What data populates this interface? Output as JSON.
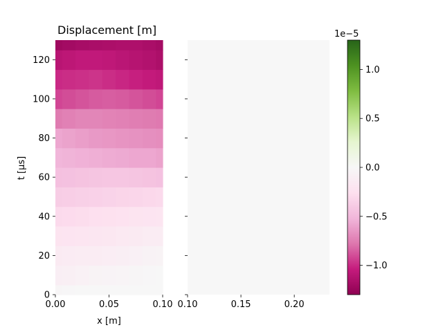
{
  "chart_data": [
    {
      "type": "heatmap",
      "title": "Displacement [m]",
      "xlabel": "x [m]",
      "ylabel": "t [µs]",
      "xlim": [
        0.0,
        0.1
      ],
      "ylim": [
        0,
        130
      ],
      "xticks": [
        0.0,
        0.05,
        0.1
      ],
      "xtick_labels": [
        "0.00",
        "0.05",
        "0.10"
      ],
      "yticks": [
        0,
        20,
        40,
        60,
        80,
        100,
        120
      ],
      "ytick_labels": [
        "0",
        "20",
        "40",
        "60",
        "80",
        "100",
        "120"
      ],
      "x": [
        0.0,
        0.0125,
        0.025,
        0.0375,
        0.05,
        0.0625,
        0.075,
        0.0875,
        0.1
      ],
      "t": [
        0,
        10,
        20,
        30,
        40,
        50,
        60,
        70,
        80,
        90,
        100,
        110,
        120,
        130
      ],
      "values": [
        [
          -0.02,
          -0.01,
          0.0,
          0.0,
          0.0,
          0.0,
          0.0,
          0.0,
          0.0
        ],
        [
          -0.1,
          -0.09,
          -0.07,
          -0.05,
          -0.04,
          -0.03,
          -0.02,
          -0.01,
          0.0
        ],
        [
          -0.15,
          -0.14,
          -0.13,
          -0.12,
          -0.11,
          -0.1,
          -0.08,
          -0.06,
          -0.05
        ],
        [
          -0.22,
          -0.21,
          -0.2,
          -0.19,
          -0.18,
          -0.16,
          -0.15,
          -0.13,
          -0.12
        ],
        [
          -0.3,
          -0.29,
          -0.28,
          -0.26,
          -0.25,
          -0.24,
          -0.22,
          -0.21,
          -0.2
        ],
        [
          -0.38,
          -0.37,
          -0.36,
          -0.35,
          -0.34,
          -0.33,
          -0.32,
          -0.31,
          -0.3
        ],
        [
          -0.46,
          -0.45,
          -0.44,
          -0.43,
          -0.42,
          -0.42,
          -0.43,
          -0.44,
          -0.45
        ],
        [
          -0.52,
          -0.53,
          -0.54,
          -0.55,
          -0.56,
          -0.57,
          -0.58,
          -0.58,
          -0.6
        ],
        [
          -0.58,
          -0.6,
          -0.62,
          -0.64,
          -0.65,
          -0.66,
          -0.67,
          -0.68,
          -0.69
        ],
        [
          -0.76,
          -0.74,
          -0.72,
          -0.72,
          -0.73,
          -0.74,
          -0.75,
          -0.76,
          -0.77
        ],
        [
          -0.92,
          -0.9,
          -0.88,
          -0.86,
          -0.85,
          -0.86,
          -0.88,
          -0.9,
          -0.92
        ],
        [
          -1.0,
          -0.99,
          -0.98,
          -0.97,
          -0.99,
          -1.01,
          -1.03,
          -1.05,
          -1.07
        ],
        [
          -1.1,
          -1.08,
          -1.06,
          -1.06,
          -1.07,
          -1.09,
          -1.11,
          -1.13,
          -1.16
        ],
        [
          -1.22,
          -1.2,
          -1.18,
          -1.17,
          -1.16,
          -1.15,
          -1.15,
          -1.17,
          -1.19
        ]
      ]
    },
    {
      "type": "heatmap",
      "title": "",
      "xlabel": "",
      "ylabel": "",
      "xlim": [
        0.1,
        0.233
      ],
      "ylim": [
        0,
        130
      ],
      "xticks": [
        0.1,
        0.15,
        0.2
      ],
      "xtick_labels": [
        "0.10",
        "0.15",
        "0.20"
      ],
      "yticks": [
        0,
        20,
        40,
        60,
        80,
        100,
        120
      ],
      "ytick_labels": [
        "",
        "",
        "",
        "",
        "",
        "",
        ""
      ],
      "uniform_value": 0.0
    }
  ],
  "colorbar": {
    "colormap": "PiYG",
    "range": [
      -1.3,
      1.3
    ],
    "ticks": [
      -1.0,
      -0.5,
      0.0,
      0.5,
      1.0
    ],
    "tick_labels": [
      "−1.0",
      "−0.5",
      "0.0",
      "0.5",
      "1.0"
    ],
    "offset_label": "1e−5"
  },
  "colors": {
    "colormap_stops": [
      "#8e0152",
      "#c51b7d",
      "#de77ae",
      "#f1b6da",
      "#fde0ef",
      "#f7f7f7",
      "#e6f5d0",
      "#b8e186",
      "#7fbc41",
      "#4d9221",
      "#276419"
    ]
  }
}
